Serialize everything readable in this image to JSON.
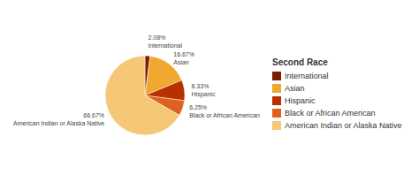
{
  "chart_data": {
    "type": "pie",
    "title": "Second Race",
    "categories": [
      "International",
      "Asian",
      "Hispanic",
      "Black or African American",
      "American Indian or Alaska Native"
    ],
    "values": [
      2.08,
      16.67,
      8.33,
      6.25,
      66.67
    ],
    "value_labels": [
      "2.08%",
      "16.67%",
      "8.33%",
      "6.25%",
      "66.67%"
    ],
    "colors": [
      "#7a1e00",
      "#f0a830",
      "#b83000",
      "#e06020",
      "#f5c878"
    ],
    "data_labels": true,
    "legend": "right"
  }
}
